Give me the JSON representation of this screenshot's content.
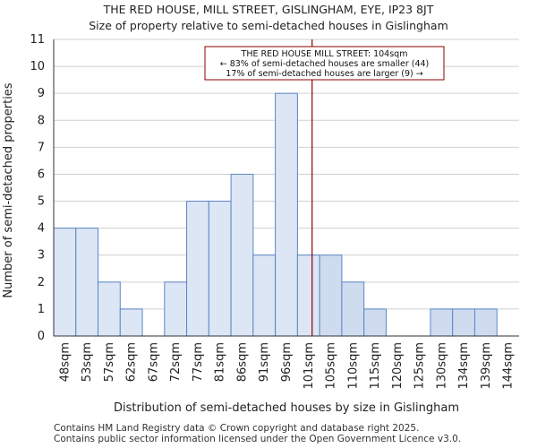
{
  "chart_data": {
    "type": "bar",
    "title": "THE RED HOUSE, MILL STREET, GISLINGHAM, EYE, IP23 8JT",
    "subtitle": "Size of property relative to semi-detached houses in Gislingham",
    "xlabel": "Distribution of semi-detached houses by size in Gislingham",
    "ylabel": "Number of semi-detached properties",
    "ylim": [
      0,
      11
    ],
    "yticks": [
      "0",
      "1",
      "2",
      "3",
      "4",
      "5",
      "6",
      "7",
      "8",
      "9",
      "10",
      "11"
    ],
    "categories": [
      "48sqm",
      "53sqm",
      "57sqm",
      "62sqm",
      "67sqm",
      "72sqm",
      "77sqm",
      "81sqm",
      "86sqm",
      "91sqm",
      "96sqm",
      "101sqm",
      "105sqm",
      "110sqm",
      "115sqm",
      "120sqm",
      "125sqm",
      "130sqm",
      "134sqm",
      "139sqm",
      "144sqm"
    ],
    "values": [
      4,
      4,
      2,
      1,
      0,
      2,
      5,
      5,
      6,
      3,
      9,
      3,
      3,
      2,
      1,
      0,
      0,
      1,
      1,
      1,
      0
    ],
    "marker": {
      "value_sqm": 104,
      "line1": "THE RED HOUSE MILL STREET: 104sqm",
      "line2": "← 83% of semi-detached houses are smaller (44)",
      "line3": "17% of semi-detached houses are larger (9) →"
    },
    "colors": {
      "bar_left": "#dce6f5",
      "bar_right": "#cfdcf0",
      "bar_edge": "#5b86c4",
      "marker": "#8b0000",
      "grid": "#d0d0d0"
    }
  },
  "footer": {
    "line1": "Contains HM Land Registry data © Crown copyright and database right 2025.",
    "line2": "Contains public sector information licensed under the Open Government Licence v3.0."
  }
}
